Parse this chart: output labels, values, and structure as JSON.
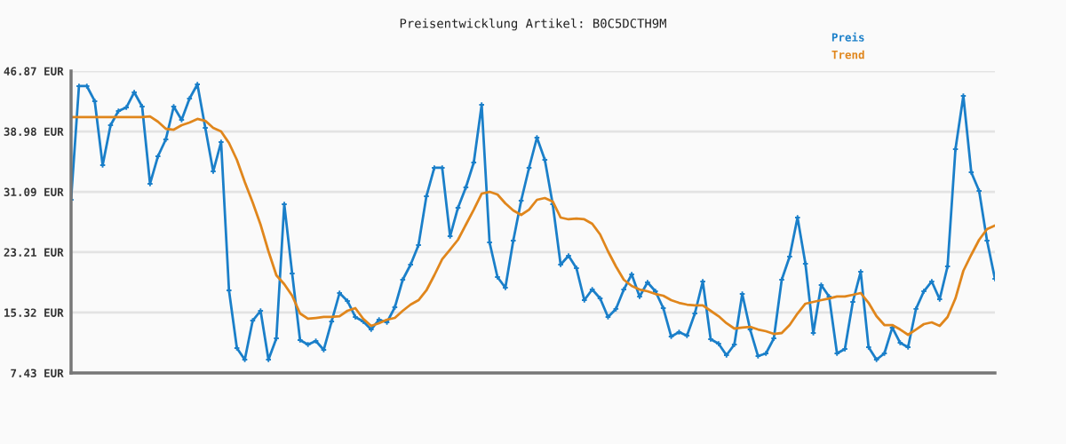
{
  "chart_data": {
    "type": "line",
    "title": "Preisentwicklung Artikel: B0C5DCTH9M",
    "categories": [
      null,
      null,
      null,
      null,
      null,
      null,
      null,
      null,
      null,
      null,
      null,
      null,
      null,
      null,
      null,
      null,
      null,
      null,
      null,
      null,
      null,
      null,
      null,
      null,
      null,
      null,
      null,
      null,
      null,
      null,
      null,
      null,
      null,
      null,
      null,
      null,
      null,
      null,
      null,
      null,
      null,
      null,
      null,
      null,
      null,
      null,
      null,
      null,
      null,
      null,
      null,
      null,
      null,
      null,
      null,
      null,
      null,
      null,
      null,
      null,
      null,
      null,
      null,
      null,
      null,
      null,
      null,
      null,
      null,
      null,
      null,
      null,
      null,
      null,
      null,
      null,
      null,
      null,
      null,
      null,
      null,
      null,
      null,
      null,
      null,
      null,
      null,
      null,
      null,
      null,
      null,
      null,
      null,
      null,
      null,
      null,
      null,
      null,
      null,
      null,
      null,
      null,
      null,
      null,
      null,
      null,
      null,
      null,
      null,
      null,
      null,
      null,
      null,
      null,
      null,
      null,
      null,
      null
    ],
    "series": [
      {
        "name": "Preis",
        "color": "#1a7fc9",
        "marker": "cross",
        "values": [
          30.05,
          44.9,
          44.9,
          42.93,
          34.57,
          39.79,
          41.65,
          42.11,
          44.09,
          42.23,
          32.14,
          35.73,
          37.94,
          42.23,
          40.49,
          43.27,
          45.13,
          39.45,
          33.76,
          37.59,
          18.22,
          10.68,
          9.17,
          14.27,
          15.55,
          9.17,
          11.95,
          29.47,
          20.42,
          11.72,
          11.14,
          11.61,
          10.45,
          14.16,
          17.87,
          16.83,
          14.74,
          14.16,
          13.11,
          14.39,
          14.04,
          16.01,
          19.61,
          21.58,
          24.13,
          30.51,
          34.23,
          34.23,
          25.29,
          29.01,
          31.67,
          34.92,
          42.46,
          24.48,
          19.96,
          18.57,
          24.71,
          29.93,
          34.23,
          38.17,
          35.27,
          29.47,
          21.58,
          22.74,
          21.12,
          16.94,
          18.33,
          17.17,
          14.74,
          15.79,
          18.33,
          20.31,
          17.41,
          19.26,
          18.1,
          15.9,
          12.19,
          12.77,
          12.3,
          15.2,
          19.38,
          11.84,
          11.26,
          9.75,
          11.14,
          17.75,
          13.11,
          9.63,
          9.98,
          11.95,
          19.61,
          22.63,
          27.73,
          21.7,
          12.65,
          18.91,
          17.41,
          9.98,
          10.56,
          16.71,
          20.65,
          10.79,
          9.17,
          9.98,
          13.35,
          11.37,
          10.79,
          15.79,
          18.1,
          19.38,
          17.06,
          21.35,
          36.66,
          43.62,
          33.65,
          31.21,
          24.71,
          19.73
        ]
      },
      {
        "name": "Trend",
        "color": "#e0861c",
        "marker": "none",
        "values": [
          40.84,
          40.84,
          40.84,
          40.84,
          40.84,
          40.84,
          40.84,
          40.84,
          40.84,
          40.84,
          40.95,
          40.26,
          39.33,
          39.21,
          39.79,
          40.14,
          40.61,
          40.37,
          39.45,
          38.98,
          37.47,
          35.27,
          32.37,
          29.7,
          26.8,
          23.32,
          20.19,
          19.03,
          17.52,
          15.2,
          14.51,
          14.62,
          14.74,
          14.74,
          14.85,
          15.55,
          15.9,
          14.51,
          13.58,
          13.93,
          14.39,
          14.62,
          15.55,
          16.36,
          16.94,
          18.22,
          20.19,
          22.28,
          23.55,
          24.83,
          26.8,
          28.77,
          30.86,
          31.09,
          30.75,
          29.59,
          28.66,
          28.08,
          28.77,
          30.05,
          30.28,
          29.82,
          27.73,
          27.5,
          27.61,
          27.5,
          26.92,
          25.53,
          23.32,
          21.35,
          19.61,
          18.8,
          18.33,
          18.1,
          17.75,
          17.52,
          16.94,
          16.59,
          16.36,
          16.25,
          16.25,
          15.55,
          14.85,
          13.93,
          13.23,
          13.35,
          13.46,
          13.11,
          12.88,
          12.53,
          12.65,
          13.69,
          15.2,
          16.48,
          16.71,
          16.94,
          17.17,
          17.41,
          17.41,
          17.64,
          17.87,
          16.59,
          14.85,
          13.69,
          13.69,
          13.11,
          12.42,
          13.11,
          13.81,
          14.04,
          13.58,
          14.74,
          17.17,
          20.77,
          22.86,
          24.83,
          26.22,
          26.69
        ]
      }
    ],
    "ylim": [
      7.43,
      46.87
    ],
    "yticks": [
      {
        "value": 7.43,
        "label": "7.43 EUR"
      },
      {
        "value": 15.32,
        "label": "15.32 EUR"
      },
      {
        "value": 23.21,
        "label": "23.21 EUR"
      },
      {
        "value": 31.09,
        "label": "31.09 EUR"
      },
      {
        "value": 38.98,
        "label": "38.98 EUR"
      },
      {
        "value": 46.87,
        "label": "46.87 EUR"
      }
    ],
    "grid": "y",
    "legend": "top right",
    "line_style": "solid"
  }
}
